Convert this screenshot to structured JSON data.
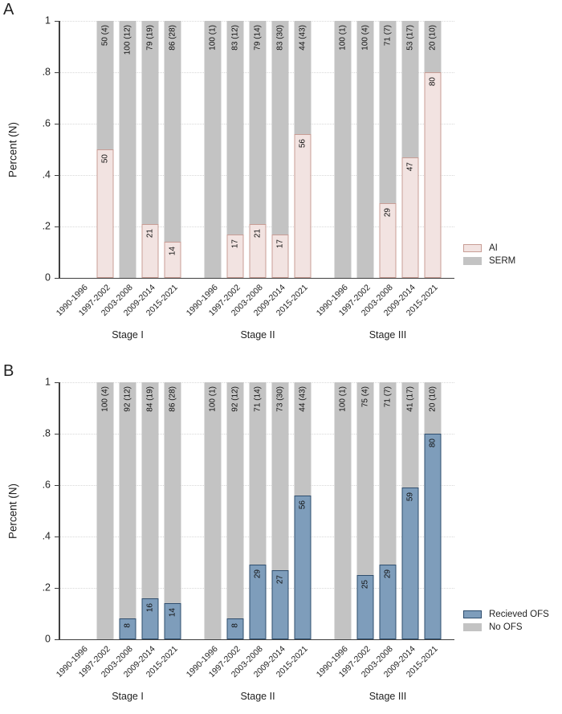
{
  "figure": {
    "panel_count": 2
  },
  "chart_data": [
    {
      "type": "bar",
      "stacked": true,
      "panel_letter": "A",
      "title": "",
      "ylabel": "Percent (N)",
      "ylim": [
        0,
        1
      ],
      "grid": "dotted horizontal",
      "legend_position": "right-bottom",
      "ytick_labels": [
        "1",
        ".8",
        ".6",
        ".4",
        ".2",
        "0"
      ],
      "base_fill": "#c3c3c3",
      "accent_fill": "#f2e3e1",
      "accent_border": "#c89d95",
      "legend": [
        {
          "name": "AI",
          "role": "accent"
        },
        {
          "name": "SERM",
          "role": "base"
        }
      ],
      "groups": [
        {
          "label": "Stage I",
          "bars": [
            {
              "period": "1990-1996",
              "base_label": null,
              "base_pct": null,
              "accent_pct": null,
              "accent_label": null
            },
            {
              "period": "1997-2002",
              "base_label": "50 (4)",
              "base_pct": 50,
              "accent_pct": 50,
              "accent_label": "50"
            },
            {
              "period": "2003-2008",
              "base_label": "100 (12)",
              "base_pct": 100,
              "accent_pct": 0,
              "accent_label": null
            },
            {
              "period": "2009-2014",
              "base_label": "79 (19)",
              "base_pct": 79,
              "accent_pct": 21,
              "accent_label": "21"
            },
            {
              "period": "2015-2021",
              "base_label": "86 (28)",
              "base_pct": 86,
              "accent_pct": 14,
              "accent_label": "14"
            }
          ]
        },
        {
          "label": "Stage II",
          "bars": [
            {
              "period": "1990-1996",
              "base_label": "100 (1)",
              "base_pct": 100,
              "accent_pct": 0,
              "accent_label": null
            },
            {
              "period": "1997-2002",
              "base_label": "83 (12)",
              "base_pct": 83,
              "accent_pct": 17,
              "accent_label": "17"
            },
            {
              "period": "2003-2008",
              "base_label": "79 (14)",
              "base_pct": 79,
              "accent_pct": 21,
              "accent_label": "21"
            },
            {
              "period": "2009-2014",
              "base_label": "83 (30)",
              "base_pct": 83,
              "accent_pct": 17,
              "accent_label": "17"
            },
            {
              "period": "2015-2021",
              "base_label": "44 (43)",
              "base_pct": 44,
              "accent_pct": 56,
              "accent_label": "56"
            }
          ]
        },
        {
          "label": "Stage III",
          "bars": [
            {
              "period": "1990-1996",
              "base_label": "100 (1)",
              "base_pct": 100,
              "accent_pct": 0,
              "accent_label": null
            },
            {
              "period": "1997-2002",
              "base_label": "100 (4)",
              "base_pct": 100,
              "accent_pct": 0,
              "accent_label": null
            },
            {
              "period": "2003-2008",
              "base_label": "71 (7)",
              "base_pct": 71,
              "accent_pct": 29,
              "accent_label": "29"
            },
            {
              "period": "2009-2014",
              "base_label": "53 (17)",
              "base_pct": 53,
              "accent_pct": 47,
              "accent_label": "47"
            },
            {
              "period": "2015-2021",
              "base_label": "20 (10)",
              "base_pct": 20,
              "accent_pct": 80,
              "accent_label": "80"
            }
          ]
        }
      ]
    },
    {
      "type": "bar",
      "stacked": true,
      "panel_letter": "B",
      "title": "",
      "ylabel": "Percent (N)",
      "ylim": [
        0,
        1
      ],
      "grid": "dotted horizontal",
      "legend_position": "right-bottom",
      "ytick_labels": [
        "1",
        ".8",
        ".6",
        ".4",
        ".2",
        "0"
      ],
      "base_fill": "#c3c3c3",
      "accent_fill": "#7e9dbb",
      "accent_border": "#2f4e6e",
      "legend": [
        {
          "name": "Recieved OFS",
          "role": "accent"
        },
        {
          "name": "No OFS",
          "role": "base"
        }
      ],
      "groups": [
        {
          "label": "Stage I",
          "bars": [
            {
              "period": "1990-1996",
              "base_label": null,
              "base_pct": null,
              "accent_pct": null,
              "accent_label": null
            },
            {
              "period": "1997-2002",
              "base_label": "100 (4)",
              "base_pct": 100,
              "accent_pct": 0,
              "accent_label": null
            },
            {
              "period": "2003-2008",
              "base_label": "92 (12)",
              "base_pct": 92,
              "accent_pct": 8,
              "accent_label": "8"
            },
            {
              "period": "2009-2014",
              "base_label": "84 (19)",
              "base_pct": 84,
              "accent_pct": 16,
              "accent_label": "16"
            },
            {
              "period": "2015-2021",
              "base_label": "86 (28)",
              "base_pct": 86,
              "accent_pct": 14,
              "accent_label": "14"
            }
          ]
        },
        {
          "label": "Stage II",
          "bars": [
            {
              "period": "1990-1996",
              "base_label": "100 (1)",
              "base_pct": 100,
              "accent_pct": 0,
              "accent_label": null
            },
            {
              "period": "1997-2002",
              "base_label": "92 (12)",
              "base_pct": 92,
              "accent_pct": 8,
              "accent_label": "8"
            },
            {
              "period": "2003-2008",
              "base_label": "71 (14)",
              "base_pct": 71,
              "accent_pct": 29,
              "accent_label": "29"
            },
            {
              "period": "2009-2014",
              "base_label": "73 (30)",
              "base_pct": 73,
              "accent_pct": 27,
              "accent_label": "27"
            },
            {
              "period": "2015-2021",
              "base_label": "44 (43)",
              "base_pct": 44,
              "accent_pct": 56,
              "accent_label": "56"
            }
          ]
        },
        {
          "label": "Stage III",
          "bars": [
            {
              "period": "1990-1996",
              "base_label": "100 (1)",
              "base_pct": 100,
              "accent_pct": 0,
              "accent_label": null
            },
            {
              "period": "1997-2002",
              "base_label": "75 (4)",
              "base_pct": 75,
              "accent_pct": 25,
              "accent_label": "25"
            },
            {
              "period": "2003-2008",
              "base_label": "71 (7)",
              "base_pct": 71,
              "accent_pct": 29,
              "accent_label": "29"
            },
            {
              "period": "2009-2014",
              "base_label": "41 (17)",
              "base_pct": 41,
              "accent_pct": 59,
              "accent_label": "59"
            },
            {
              "period": "2015-2021",
              "base_label": "20 (10)",
              "base_pct": 20,
              "accent_pct": 80,
              "accent_label": "80"
            }
          ]
        }
      ]
    }
  ]
}
